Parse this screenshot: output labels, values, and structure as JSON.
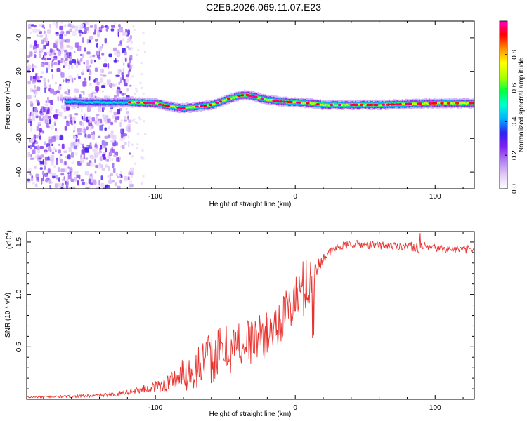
{
  "title": "C2E6.2026.069.11.07.E23",
  "colors": {
    "snr_line": "#e8322e",
    "axis": "#000000",
    "colormap": [
      "#ffffff",
      "#e2cbf5",
      "#b080f0",
      "#8020f0",
      "#3020f0",
      "#00b0ff",
      "#00ffd0",
      "#00ff40",
      "#b0ff00",
      "#ffff00",
      "#ff9000",
      "#ff0000",
      "#ff00c0"
    ]
  },
  "chart_data": [
    {
      "type": "heatmap",
      "title": "",
      "xlabel": "Height of straight line (km)",
      "ylabel": "Frequency (Hz)",
      "xlim": [
        -192,
        128
      ],
      "ylim": [
        -50,
        50
      ],
      "xticks": [
        -100,
        0,
        100
      ],
      "yticks": [
        -40,
        -20,
        0,
        20,
        40
      ],
      "colorbar": {
        "label": "Normalized spectral amplitude",
        "range": [
          0,
          1
        ],
        "ticks": [
          0.0,
          0.2,
          0.4,
          0.6,
          0.8
        ]
      },
      "noise_region_x": [
        -192,
        -118
      ],
      "ridge": {
        "x": [
          -165,
          -150,
          -130,
          -115,
          -100,
          -90,
          -80,
          -70,
          -60,
          -50,
          -40,
          -35,
          -30,
          -25,
          -20,
          -10,
          0,
          10,
          20,
          40,
          60,
          80,
          100,
          128
        ],
        "freq": [
          2,
          1.5,
          1.5,
          1.5,
          1,
          -1,
          -2,
          -1,
          0,
          3,
          5.5,
          6,
          5,
          4,
          3,
          2,
          1.5,
          1,
          0,
          0,
          0,
          0.5,
          1,
          1
        ]
      }
    },
    {
      "type": "line",
      "title": "",
      "xlabel": "Height of straight line (km)",
      "ylabel": "SNR (10 * v/v)",
      "scale_label": "(x10",
      "scale_exponent": "4",
      "scale_suffix": ")",
      "xlim": [
        -192,
        128
      ],
      "ylim": [
        0,
        1.6
      ],
      "xticks": [
        -100,
        0,
        100
      ],
      "yticks": [
        0.5,
        1.0,
        1.5
      ],
      "ytick_labels": [
        "0.5",
        "1.0",
        "1.5"
      ],
      "series": [
        {
          "name": "SNR",
          "x": [
            -192,
            -170,
            -150,
            -130,
            -115,
            -100,
            -90,
            -80,
            -70,
            -60,
            -50,
            -40,
            -30,
            -20,
            -10,
            0,
            5,
            10,
            15,
            20,
            30,
            40,
            60,
            80,
            90,
            100,
            110,
            128
          ],
          "mean": [
            0.02,
            0.025,
            0.03,
            0.045,
            0.08,
            0.12,
            0.16,
            0.2,
            0.27,
            0.35,
            0.42,
            0.48,
            0.52,
            0.58,
            0.72,
            0.9,
            0.98,
            1.08,
            1.2,
            1.35,
            1.45,
            1.48,
            1.47,
            1.46,
            1.45,
            1.44,
            1.43,
            1.43
          ],
          "amp": [
            0.01,
            0.01,
            0.015,
            0.02,
            0.03,
            0.05,
            0.1,
            0.2,
            0.25,
            0.3,
            0.3,
            0.28,
            0.28,
            0.25,
            0.25,
            0.3,
            0.35,
            0.3,
            0.12,
            0.05,
            0.04,
            0.04,
            0.04,
            0.04,
            0.06,
            0.04,
            0.04,
            0.04
          ]
        }
      ]
    }
  ]
}
